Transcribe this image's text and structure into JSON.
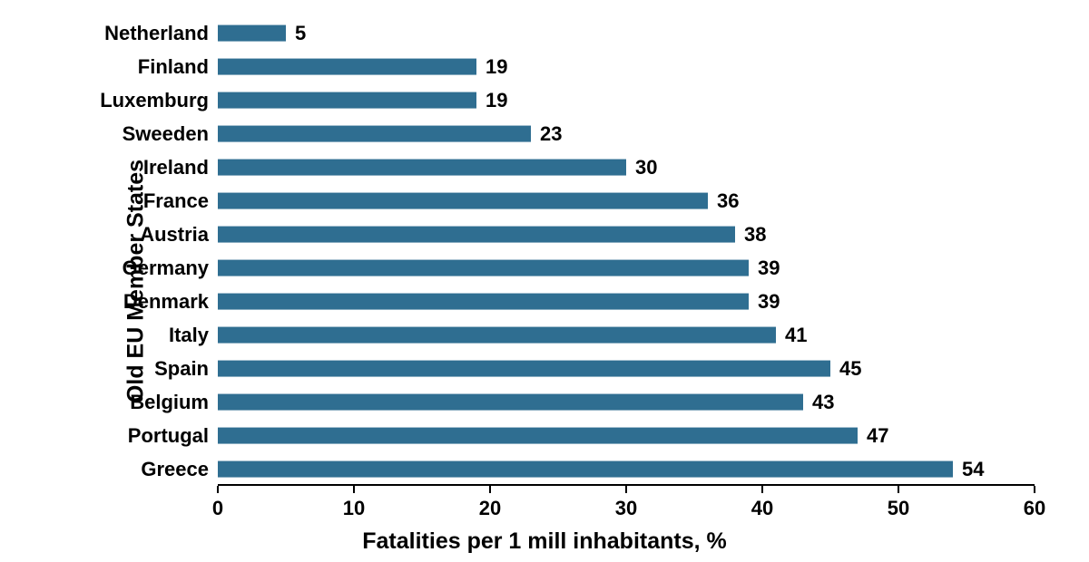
{
  "chart": {
    "type": "bar-horizontal",
    "y_axis_title": "Old EU Member States",
    "x_axis_title": "Fatalities per 1 mill inhabitants, %",
    "bar_color": "#2f6e91",
    "background_color": "#ffffff",
    "axis_color": "#000000",
    "label_color": "#000000",
    "label_fontsize": 22,
    "axis_title_fontsize": 25,
    "xlim": [
      0,
      60
    ],
    "x_tick_step": 10,
    "x_ticks": [
      0,
      10,
      20,
      30,
      40,
      50,
      60
    ],
    "bar_height_ratio": 0.51,
    "categories": [
      "Netherland",
      "Finland",
      "Luxemburg",
      "Sweeden",
      "Ireland",
      "France",
      "Austria",
      "Germany",
      "Denmark",
      "Italy",
      "Spain",
      "Belgium",
      "Portugal",
      "Greece"
    ],
    "values": [
      5,
      19,
      19,
      23,
      30,
      36,
      38,
      39,
      39,
      41,
      45,
      43,
      47,
      54
    ]
  }
}
